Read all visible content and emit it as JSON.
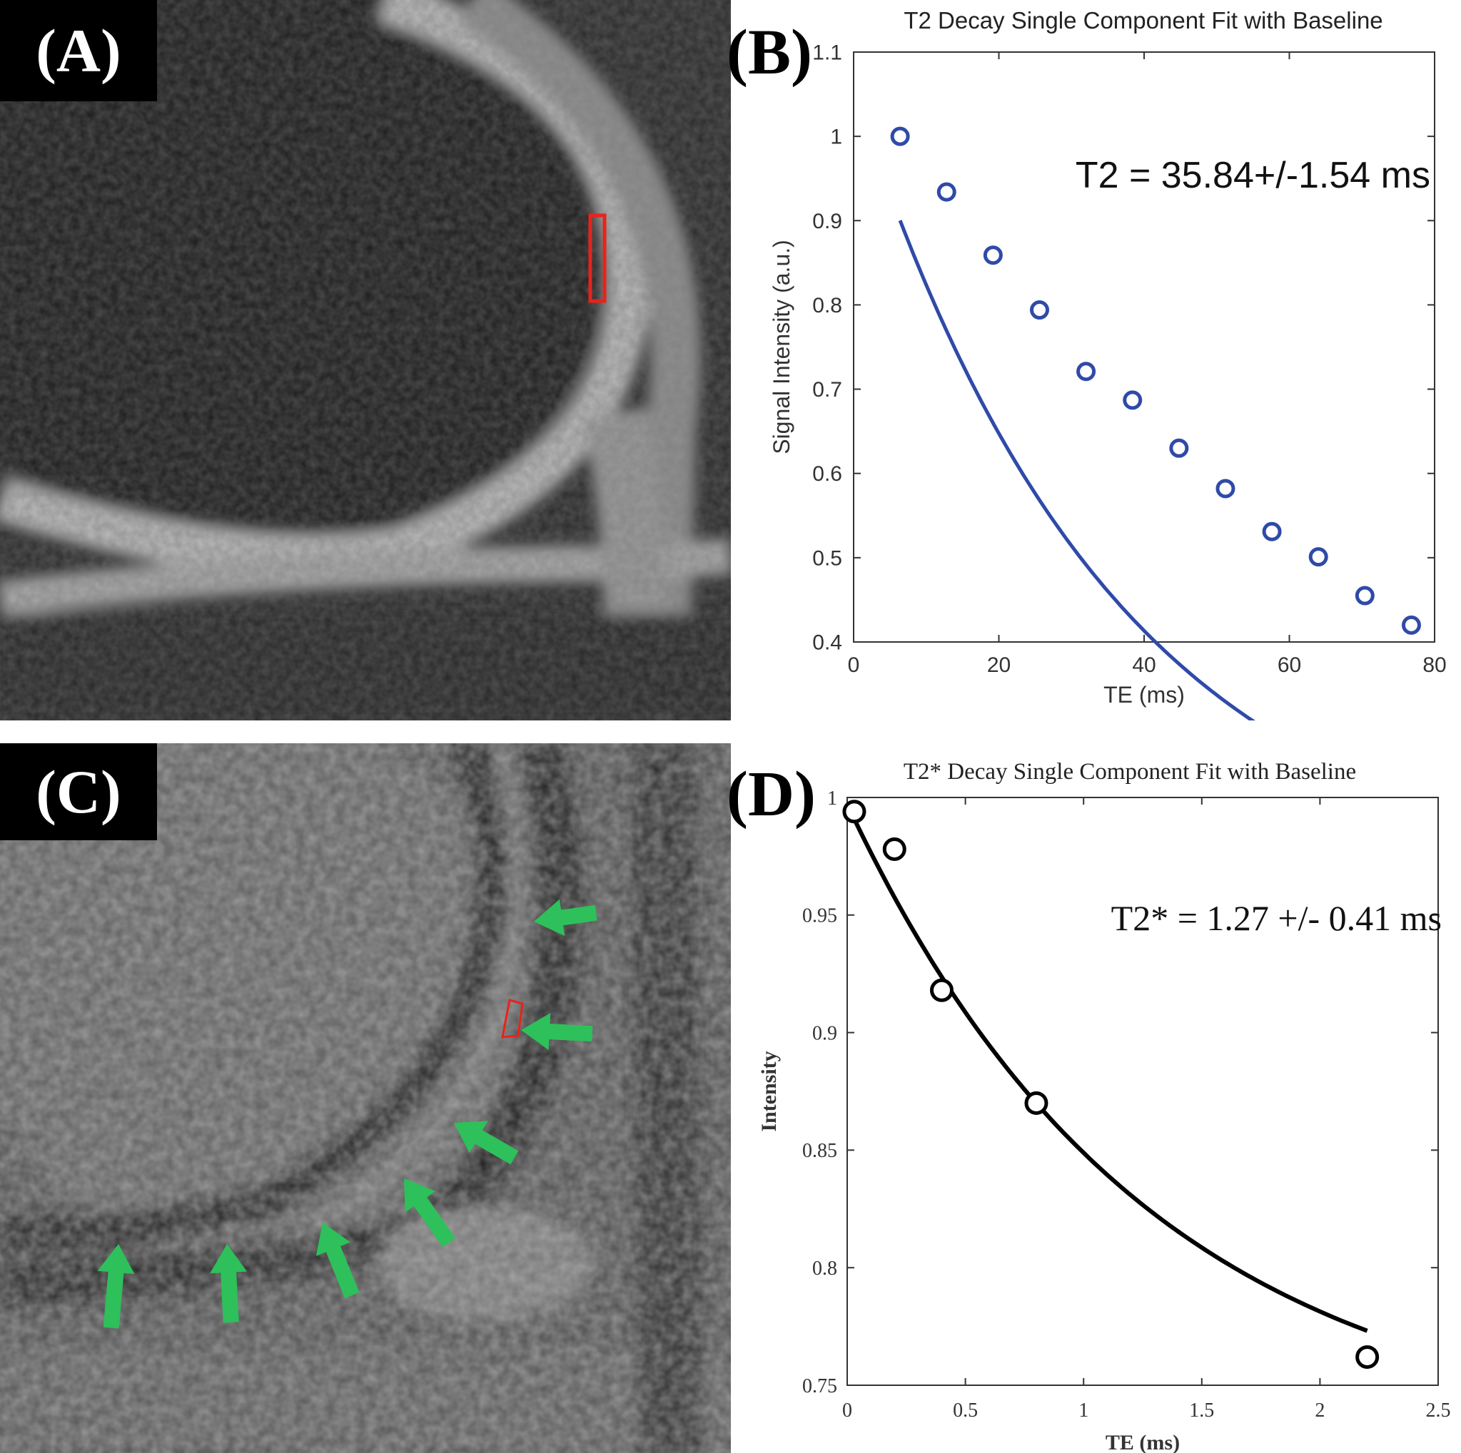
{
  "panels": {
    "a": {
      "label": "(A)"
    },
    "b": {
      "label": "(B)"
    },
    "c": {
      "label": "(C)"
    },
    "d": {
      "label": "(D)"
    }
  },
  "colors": {
    "roi": "#e8231c",
    "arrow": "#2ec05a",
    "fit_b": "#2f4aa8",
    "fit_d": "#000000"
  },
  "chart_data": [
    {
      "type": "scatter",
      "title": "T2 Decay Single Component Fit with Baseline",
      "xlabel": "TE (ms)",
      "ylabel": "Signal Intensity (a.u.)",
      "xlim": [
        0,
        80
      ],
      "ylim": [
        0.4,
        1.1
      ],
      "xticks": [
        "0",
        "20",
        "40",
        "60",
        "80"
      ],
      "yticks": [
        "0.4",
        "0.5",
        "0.6",
        "0.7",
        "0.8",
        "0.9",
        "1",
        "1.1"
      ],
      "annotation": "T2 = 35.84+/-1.54 ms",
      "series": [
        {
          "x": [
            6.4,
            12.8,
            19.2,
            25.6,
            32.0,
            38.4,
            44.8,
            51.2,
            57.6,
            64.0,
            70.4,
            76.8
          ],
          "y": [
            1.0,
            0.934,
            0.859,
            0.794,
            0.721,
            0.687,
            0.63,
            0.582,
            0.531,
            0.501,
            0.455,
            0.42
          ]
        }
      ],
      "fit": {
        "model": "a*exp(-x/T2)+c",
        "a": 0.9566,
        "T2": 35.84,
        "c": 0.1,
        "xrange": [
          6.4,
          76.8
        ]
      }
    },
    {
      "type": "scatter",
      "title": "T2* Decay Single Component Fit with Baseline",
      "xlabel": "TE (ms)",
      "ylabel": "Intensity",
      "xlim": [
        0,
        2.5
      ],
      "ylim": [
        0.75,
        1.0
      ],
      "xticks": [
        "0",
        "0.5",
        "1",
        "1.5",
        "2",
        "2.5"
      ],
      "yticks": [
        "0.75",
        "0.8",
        "0.85",
        "0.9",
        "0.95",
        "1"
      ],
      "annotation": "T2* = 1.27 +/- 0.41 ms",
      "series": [
        {
          "x": [
            0.03,
            0.2,
            0.4,
            0.8,
            2.2
          ],
          "y": [
            0.994,
            0.978,
            0.918,
            0.87,
            0.762
          ]
        }
      ],
      "fit": {
        "model": "a*exp(-x/T2)+c",
        "a": 0.2722,
        "T2": 1.27,
        "c": 0.725,
        "xrange": [
          0.03,
          2.2
        ]
      }
    }
  ]
}
